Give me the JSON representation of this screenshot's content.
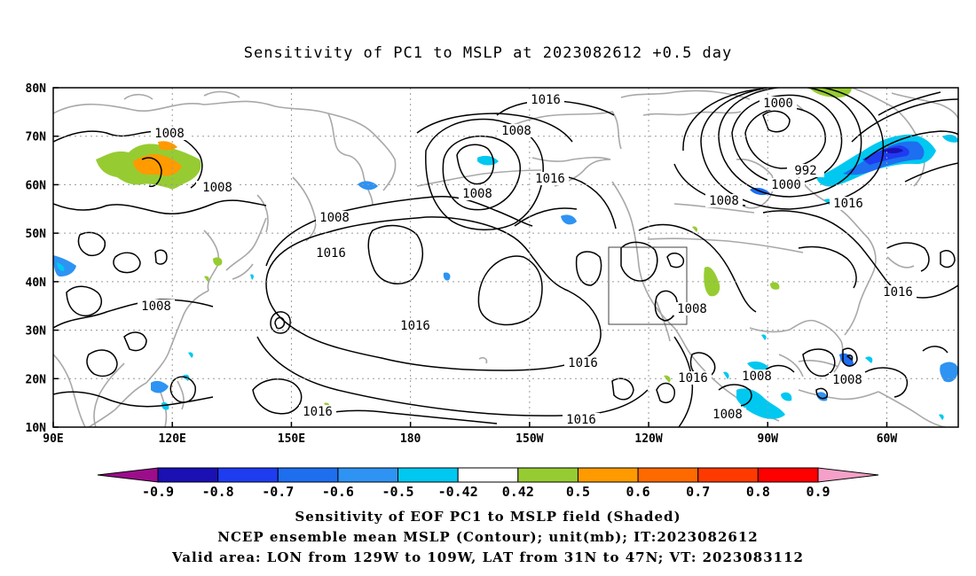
{
  "title": "Sensitivity of PC1 to MSLP at 2023082612 +0.5 day",
  "lat_labels": [
    "80N",
    "70N",
    "60N",
    "50N",
    "40N",
    "30N",
    "20N",
    "10N"
  ],
  "lon_labels": [
    "90E",
    "120E",
    "150E",
    "180",
    "150W",
    "120W",
    "90W",
    "60W"
  ],
  "contour_labels": [
    "1016",
    "1008",
    "1000",
    "992",
    "1000",
    "1008",
    "1016",
    "1008",
    "1016",
    "1008",
    "1016",
    "1016",
    "1016",
    "1008",
    "1016",
    "1016",
    "1008",
    "1016",
    "1008",
    "1008",
    "1008",
    "1008",
    "1016",
    "1016",
    "1008"
  ],
  "colorbar": {
    "ticks": [
      "-0.9",
      "-0.8",
      "-0.7",
      "-0.6",
      "-0.5",
      "-0.42",
      "0.42",
      "0.5",
      "0.6",
      "0.7",
      "0.8",
      "0.9"
    ],
    "colors": [
      "#9c0d8c",
      "#1a10b4",
      "#1e3cf0",
      "#1e6ef0",
      "#2e93f2",
      "#00c8f0",
      "#ffffff",
      "#96cc32",
      "#ff9a00",
      "#ff6a00",
      "#ff3a00",
      "#ff0000",
      "#f5a0c8"
    ]
  },
  "captions": [
    "Sensitivity of EOF PC1 to MSLP field (Shaded)",
    "NCEP ensemble mean MSLP (Contour); unit(mb); IT:2023082612",
    "Valid area: LON from 129W to 109W, LAT from 31N to 47N; VT: 2023083112"
  ]
}
